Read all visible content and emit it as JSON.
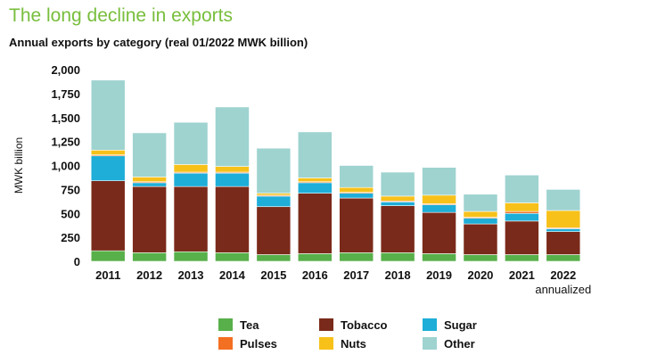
{
  "chart_data": {
    "type": "bar",
    "stacked": true,
    "title": "The long decline in exports",
    "subtitle": "Annual exports by category (real 01/2022 MWK billion)",
    "ylabel": "MWK billion",
    "ylim": [
      0,
      2000
    ],
    "yticks": [
      "0",
      "250",
      "500",
      "750",
      "1,000",
      "1,250",
      "1,500",
      "1,750",
      "2,000"
    ],
    "categories": [
      "2011",
      "2012",
      "2013",
      "2014",
      "2015",
      "2016",
      "2017",
      "2018",
      "2019",
      "2020",
      "2021",
      "2022"
    ],
    "category_sublabels": [
      "",
      "",
      "",
      "",
      "",
      "",
      "",
      "",
      "",
      "",
      "",
      "annualized"
    ],
    "series": [
      {
        "name": "Tea",
        "color": "#58b04a",
        "values": [
          110,
          90,
          100,
          90,
          70,
          80,
          90,
          90,
          80,
          70,
          70,
          70
        ]
      },
      {
        "name": "Tobacco",
        "color": "#7a2a1a",
        "values": [
          730,
          690,
          680,
          690,
          500,
          630,
          570,
          490,
          430,
          320,
          350,
          240
        ]
      },
      {
        "name": "Sugar",
        "color": "#1eaed8",
        "values": [
          260,
          40,
          140,
          140,
          110,
          110,
          50,
          40,
          80,
          60,
          80,
          30
        ]
      },
      {
        "name": "Pulses",
        "color": "#f36f21",
        "values": [
          10,
          10,
          10,
          10,
          10,
          10,
          10,
          10,
          10,
          10,
          20,
          10
        ]
      },
      {
        "name": "Nuts",
        "color": "#f7c11a",
        "values": [
          50,
          50,
          80,
          60,
          20,
          40,
          50,
          50,
          90,
          60,
          90,
          180
        ]
      },
      {
        "name": "Other",
        "color": "#9ed3d0",
        "values": [
          730,
          460,
          440,
          620,
          470,
          480,
          230,
          250,
          290,
          180,
          290,
          220
        ]
      }
    ],
    "legend_position": "bottom",
    "grid": false
  }
}
